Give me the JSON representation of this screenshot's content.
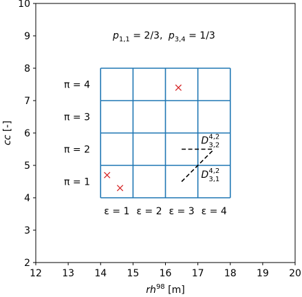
{
  "chart_data": {
    "type": "scatter",
    "xlabel_main": "rh",
    "xlabel_sup": "98",
    "xlabel_unit": " [m]",
    "ylabel_main": "cc",
    "ylabel_unit": " [-]",
    "xlim": [
      12,
      20
    ],
    "ylim": [
      2,
      10
    ],
    "xticks": [
      12,
      13,
      14,
      15,
      16,
      17,
      18,
      19,
      20
    ],
    "yticks": [
      2,
      3,
      4,
      5,
      6,
      7,
      8,
      9,
      10
    ],
    "grid_x": [
      14,
      15,
      16,
      17,
      18
    ],
    "grid_y": [
      4,
      5,
      6,
      7,
      8
    ],
    "grid_color": "#1f77b4",
    "marker_color": "#d62728",
    "points": [
      {
        "x": 14.2,
        "y": 4.7
      },
      {
        "x": 14.6,
        "y": 4.3
      },
      {
        "x": 16.4,
        "y": 7.4
      }
    ],
    "probability_annotation": "p_{1,1} = 2/3,  p_{3,4} = 1/3",
    "prob_a": {
      "base": "p",
      "sub": "1,1",
      "value": " = 2/3,"
    },
    "prob_b": {
      "base": "p",
      "sub": "3,4",
      "value": " = 1/3"
    },
    "pi_labels": [
      {
        "text": "π = 1",
        "y": 4.5
      },
      {
        "text": "π = 2",
        "y": 5.5
      },
      {
        "text": "π = 3",
        "y": 6.5
      },
      {
        "text": "π = 4",
        "y": 7.5
      }
    ],
    "epsilon_labels": [
      {
        "text": "ε = 1",
        "x": 14.5
      },
      {
        "text": "ε = 2",
        "x": 15.5
      },
      {
        "text": "ε = 3",
        "x": 16.5
      },
      {
        "text": "ε = 4",
        "x": 17.5
      }
    ],
    "distance_lines": [
      {
        "from": [
          16.5,
          5.5
        ],
        "to": [
          17.5,
          5.5
        ]
      },
      {
        "from": [
          16.5,
          4.5
        ],
        "to": [
          17.5,
          5.5
        ]
      }
    ],
    "distance_labels": [
      {
        "base": "D",
        "sup": "4,2",
        "sub": "3,2",
        "x": 17.1,
        "y": 5.67
      },
      {
        "base": "D",
        "sup": "4,2",
        "sub": "3,1",
        "x": 17.1,
        "y": 4.62
      }
    ]
  }
}
